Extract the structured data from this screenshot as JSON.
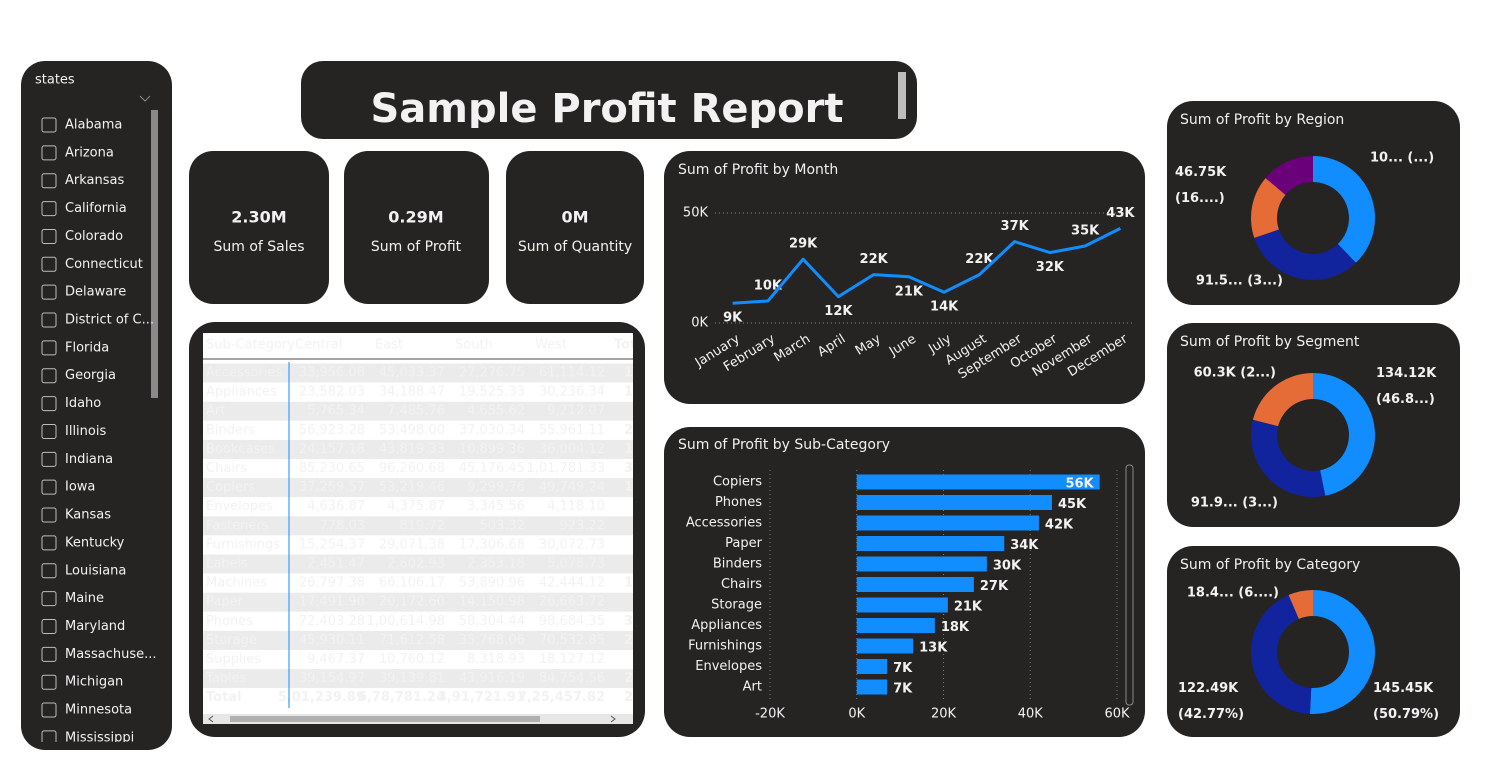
{
  "slicer": {
    "title": "states",
    "items": [
      "Alabama",
      "Arizona",
      "Arkansas",
      "California",
      "Colorado",
      "Connecticut",
      "Delaware",
      "District of C...",
      "Florida",
      "Georgia",
      "Idaho",
      "Illinois",
      "Indiana",
      "Iowa",
      "Kansas",
      "Kentucky",
      "Louisiana",
      "Maine",
      "Maryland",
      "Massachuse...",
      "Michigan",
      "Minnesota",
      "Mississippi"
    ]
  },
  "report_title": "Sample Profit Report",
  "cards": [
    {
      "value": "2.30M",
      "label": "Sum of Sales"
    },
    {
      "value": "0.29M",
      "label": "Sum of Profit"
    },
    {
      "value": "0M",
      "label": "Sum of Quantity"
    }
  ],
  "table": {
    "columns": [
      "Sub-Category",
      "Central",
      "East",
      "South",
      "West",
      "Tot"
    ],
    "rows": [
      [
        "Accessories",
        "33,956.08",
        "45,033.37",
        "27,276.75",
        "61,114.12",
        "1,"
      ],
      [
        "Appliances",
        "23,582.03",
        "34,188.47",
        "19,525.33",
        "30,236.34",
        "1,"
      ],
      [
        "Art",
        "5,765.34",
        "7,485.76",
        "4,655.62",
        "9,212.07"
      ],
      [
        "Binders",
        "56,923.28",
        "53,498.00",
        "37,030.34",
        "55,961.11",
        "2,"
      ],
      [
        "Bookcases",
        "24,157.18",
        "43,819.33",
        "10,899.36",
        "36,004.12",
        "1,"
      ],
      [
        "Chairs",
        "85,230.65",
        "96,260.68",
        "45,176.45",
        "1,01,781.33",
        "3,"
      ],
      [
        "Copiers",
        "37,259.57",
        "53,219.46",
        "9,299.76",
        "49,749.24",
        "1,"
      ],
      [
        "Envelopes",
        "4,636.87",
        "4,375.87",
        "3,345.56",
        "4,118.10"
      ],
      [
        "Fasteners",
        "778.03",
        "819.72",
        "503.32",
        "923.22"
      ],
      [
        "Furnishings",
        "15,254.37",
        "29,071.38",
        "17,306.68",
        "30,072.73"
      ],
      [
        "Labels",
        "2,451.47",
        "2,602.93",
        "2,353.18",
        "5,078.73"
      ],
      [
        "Machines",
        "26,797.38",
        "66,106.17",
        "53,890.96",
        "42,444.12",
        "1,"
      ],
      [
        "Paper",
        "17,491.90",
        "20,172.60",
        "14,150.98",
        "26,663.72"
      ],
      [
        "Phones",
        "72,403.28",
        "1,00,614.98",
        "58,304.44",
        "98,684.35",
        "3,"
      ],
      [
        "Storage",
        "45,930.11",
        "71,612.58",
        "35,768.06",
        "70,532.85",
        "2,"
      ],
      [
        "Supplies",
        "9,467.37",
        "10,760.12",
        "8,318.93",
        "18,127.12"
      ],
      [
        "Tables",
        "39,154.97",
        "39,139.81",
        "43,916.19",
        "84,754.56",
        "2,"
      ],
      [
        "Total",
        "5,01,239.89",
        "6,78,781.24",
        "3,91,721.91",
        "7,25,457.82",
        "22,"
      ]
    ]
  },
  "chart_data": [
    {
      "type": "line",
      "title": "Sum of Profit by Month",
      "categories": [
        "January",
        "February",
        "March",
        "April",
        "May",
        "June",
        "July",
        "August",
        "September",
        "October",
        "November",
        "December"
      ],
      "values": [
        9000,
        10000,
        29000,
        12000,
        22000,
        21000,
        14000,
        22000,
        37000,
        32000,
        35000,
        43000
      ],
      "value_labels": [
        "9K",
        "10K",
        "29K",
        "12K",
        "22K",
        "21K",
        "14K",
        "22K",
        "37K",
        "32K",
        "35K",
        "43K"
      ],
      "color": "#118dff",
      "ylim": [
        0,
        50000
      ],
      "yticks": [
        {
          "value": 0,
          "label": "0K"
        },
        {
          "value": 50000,
          "label": "50K"
        }
      ],
      "grid": true
    },
    {
      "type": "hbar",
      "title": "Sum of Profit by Sub-Category",
      "categories": [
        "Copiers",
        "Phones",
        "Accessories",
        "Paper",
        "Binders",
        "Chairs",
        "Storage",
        "Appliances",
        "Furnishings",
        "Envelopes",
        "Art"
      ],
      "values": [
        56000,
        45000,
        42000,
        34000,
        30000,
        27000,
        21000,
        18000,
        13000,
        7000,
        7000
      ],
      "value_labels": [
        "56K",
        "45K",
        "42K",
        "34K",
        "30K",
        "27K",
        "21K",
        "18K",
        "13K",
        "7K",
        "7K"
      ],
      "color": "#118dff",
      "xlim": [
        -20000,
        60000
      ],
      "xticks": [
        {
          "value": -20000,
          "label": "-20K"
        },
        {
          "value": 0,
          "label": "0K"
        },
        {
          "value": 20000,
          "label": "20K"
        },
        {
          "value": 40000,
          "label": "40K"
        },
        {
          "value": 60000,
          "label": "60K"
        }
      ],
      "grid": true
    },
    {
      "type": "donut",
      "title": "Sum of Profit by Region",
      "values": [
        108420,
        91520,
        46750,
        39710
      ],
      "value_labels": [
        "10... (...)",
        "91.5... (3...)",
        "46.75K (16....)",
        null
      ],
      "colors": [
        "#118dff",
        "#12239e",
        "#e66c37",
        "#6b007b"
      ]
    },
    {
      "type": "donut",
      "title": "Sum of Profit by Segment",
      "values": [
        134120,
        91950,
        60300
      ],
      "value_labels": [
        "134.12K (46.8...)",
        "91.9... (3...)",
        "60.3K (2...)"
      ],
      "colors": [
        "#118dff",
        "#12239e",
        "#e66c37"
      ]
    },
    {
      "type": "donut",
      "title": "Sum of Profit by Category",
      "values": [
        145450,
        122490,
        18450
      ],
      "value_labels": [
        "145.45K (50.79%)",
        "122.49K (42.77%)",
        "18.4... (6....)"
      ],
      "colors": [
        "#118dff",
        "#12239e",
        "#e66c37"
      ]
    }
  ]
}
